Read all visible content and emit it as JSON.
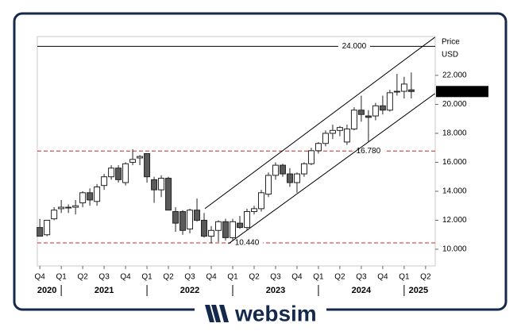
{
  "chart_data": {
    "type": "candlestick",
    "axis_title": [
      "Price",
      "USD"
    ],
    "xlim": [
      -0.35,
      55.35
    ],
    "ylim": [
      8.85,
      24.68
    ],
    "yticks": [
      {
        "value": 10,
        "label": "10.000"
      },
      {
        "value": 12,
        "label": "12.000"
      },
      {
        "value": 14,
        "label": "14.000"
      },
      {
        "value": 16,
        "label": "16.000"
      },
      {
        "value": 18,
        "label": "18.000"
      },
      {
        "value": 20,
        "label": "20.000"
      },
      {
        "value": 22,
        "label": "22.000"
      }
    ],
    "xticks": [
      {
        "value": 0,
        "label": "Q4"
      },
      {
        "value": 3,
        "label": "Q1"
      },
      {
        "value": 6,
        "label": "Q2"
      },
      {
        "value": 9,
        "label": "Q3"
      },
      {
        "value": 12,
        "label": "Q4"
      },
      {
        "value": 15,
        "label": "Q1"
      },
      {
        "value": 18,
        "label": "Q2"
      },
      {
        "value": 21,
        "label": "Q3"
      },
      {
        "value": 24,
        "label": "Q4"
      },
      {
        "value": 27,
        "label": "Q1"
      },
      {
        "value": 30,
        "label": "Q2"
      },
      {
        "value": 33,
        "label": "Q3"
      },
      {
        "value": 36,
        "label": "Q4"
      },
      {
        "value": 39,
        "label": "Q1"
      },
      {
        "value": 42,
        "label": "Q2"
      },
      {
        "value": 45,
        "label": "Q3"
      },
      {
        "value": 48,
        "label": "Q4"
      },
      {
        "value": 51,
        "label": "Q1"
      },
      {
        "value": 54,
        "label": "Q2"
      }
    ],
    "years": [
      {
        "value": 1,
        "label": "2020"
      },
      {
        "value": 9,
        "label": "2021"
      },
      {
        "value": 21,
        "label": "2022"
      },
      {
        "value": 33,
        "label": "2023"
      },
      {
        "value": 45,
        "label": "2024"
      },
      {
        "value": 53,
        "label": "2025"
      }
    ],
    "year_dividers": [
      3,
      15,
      27,
      39,
      51
    ],
    "open": [
      11.5,
      11.0,
      12.1,
      12.8,
      12.9,
      12.9,
      13.2,
      13.9,
      13.3,
      14.4,
      15.0,
      15.6,
      14.6,
      16.0,
      16.3,
      16.6,
      14.8,
      14.1,
      14.9,
      12.6,
      12.6,
      11.4,
      12.7,
      12.0,
      10.9,
      11.3,
      11.9,
      10.8,
      11.8,
      11.5,
      12.6,
      12.8,
      13.8,
      15.1,
      15.8,
      15.2,
      14.6,
      15.2,
      15.9,
      16.8,
      17.3,
      18.0,
      18.2,
      17.4,
      18.3,
      19.6,
      19.2,
      19.2,
      19.9,
      19.6,
      20.9,
      20.9,
      21.0
    ],
    "high": [
      12.1,
      12.0,
      12.9,
      13.4,
      13.1,
      13.4,
      14.0,
      14.2,
      14.5,
      15.2,
      15.8,
      15.8,
      16.0,
      16.9,
      16.5,
      16.6,
      15.0,
      15.1,
      15.0,
      12.9,
      12.7,
      12.8,
      13.5,
      12.5,
      11.6,
      12.0,
      12.1,
      12.1,
      12.3,
      12.8,
      13.0,
      14.1,
      15.3,
      16.0,
      15.9,
      15.6,
      15.3,
      16.0,
      17.0,
      17.4,
      18.2,
      18.6,
      18.5,
      18.6,
      19.8,
      20.6,
      19.6,
      20.1,
      20.6,
      21.0,
      22.1,
      21.9,
      22.2
    ],
    "low": [
      10.9,
      10.9,
      12.0,
      12.5,
      12.5,
      12.4,
      12.9,
      13.0,
      13.0,
      14.1,
      14.8,
      14.6,
      14.4,
      15.8,
      15.8,
      14.6,
      13.2,
      13.6,
      12.7,
      11.2,
      11.0,
      11.1,
      11.9,
      10.8,
      10.4,
      10.5,
      10.6,
      10.6,
      11.4,
      11.3,
      12.4,
      12.6,
      13.6,
      14.8,
      15.0,
      14.3,
      13.9,
      15.0,
      15.8,
      16.6,
      17.1,
      17.6,
      17.8,
      17.2,
      18.2,
      18.8,
      17.4,
      18.9,
      19.3,
      19.5,
      20.6,
      20.4,
      20.4
    ],
    "close": [
      10.9,
      12.0,
      12.7,
      12.9,
      12.9,
      13.0,
      13.9,
      13.4,
      14.3,
      15.0,
      15.6,
      14.8,
      15.9,
      16.2,
      16.4,
      15.0,
      14.1,
      14.9,
      12.7,
      11.8,
      11.3,
      12.7,
      12.0,
      10.9,
      11.3,
      11.9,
      10.8,
      11.9,
      11.5,
      12.6,
      12.8,
      13.9,
      15.1,
      15.8,
      15.2,
      14.6,
      15.2,
      15.9,
      16.8,
      17.3,
      18.0,
      18.2,
      18.4,
      18.3,
      19.6,
      19.3,
      19.1,
      19.9,
      19.6,
      20.8,
      20.9,
      21.4,
      20.884
    ],
    "up_color": "#ffffff",
    "down_color": "#5a5a5a",
    "levels": [
      {
        "value": 24,
        "label": "24.000",
        "color": "#000000",
        "dashed": false
      },
      {
        "value": 16.78,
        "label": "16.780",
        "color": "#d62728",
        "dashed": true
      },
      {
        "value": 10.44,
        "label": "10.440",
        "color": "#d62728",
        "dashed": true
      }
    ],
    "trendlines": [
      {
        "x": [
          23.1,
          55.3
        ],
        "y": [
          12.8,
          24.63
        ]
      },
      {
        "x": [
          26.4,
          55.3
        ],
        "y": [
          10.38,
          20.74
        ]
      }
    ],
    "last_price": {
      "value": 20.884408,
      "label": "20.884,408"
    }
  },
  "brand": "websim"
}
